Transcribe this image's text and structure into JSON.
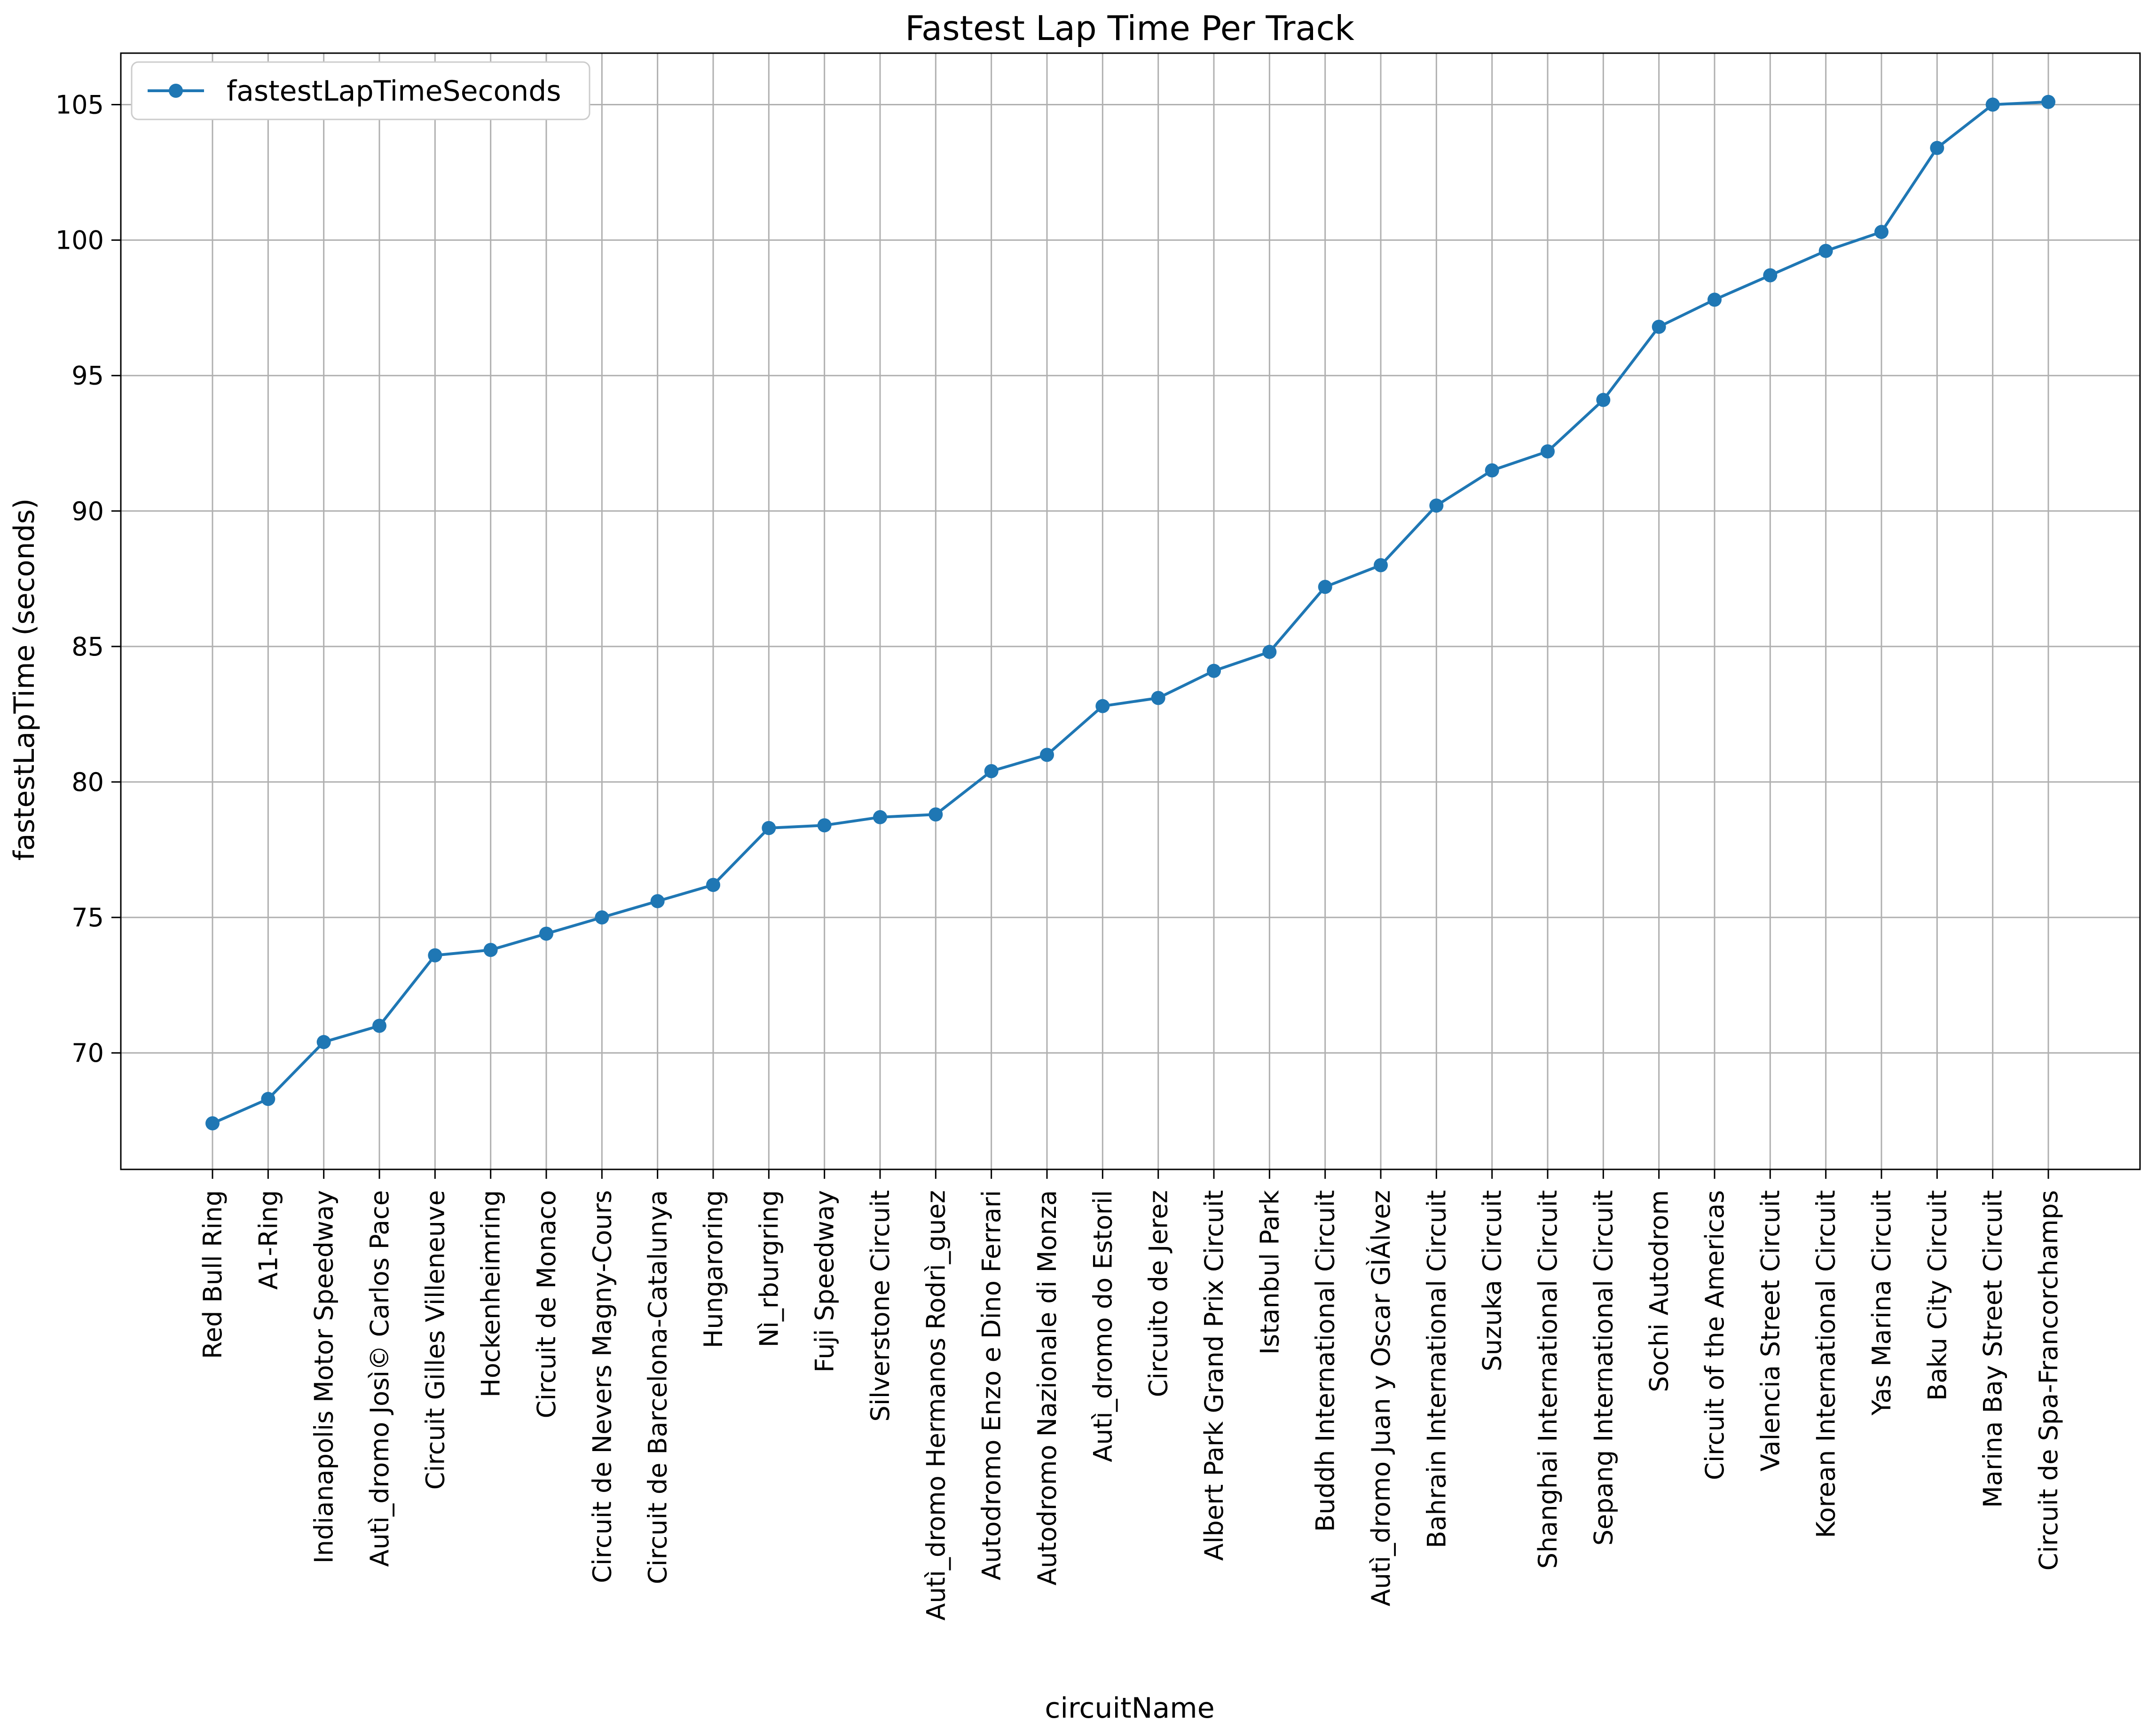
{
  "chart_data": {
    "type": "line",
    "title": "Fastest Lap Time Per Track",
    "xlabel": "circuitName",
    "ylabel": "fastestLapTime (seconds)",
    "ylim": [
      65.7,
      106.9
    ],
    "yticks": [
      70,
      75,
      80,
      85,
      90,
      95,
      100,
      105
    ],
    "grid": true,
    "legend_position": "upper-left",
    "categories": [
      "Red Bull Ring",
      "A1-Ring",
      "Indianapolis Motor Speedway",
      "Autì_dromo Josì© Carlos Pace",
      "Circuit Gilles Villeneuve",
      "Hockenheimring",
      "Circuit de Monaco",
      "Circuit de Nevers Magny-Cours",
      "Circuit de Barcelona-Catalunya",
      "Hungaroring",
      "Nì_rburgring",
      "Fuji Speedway",
      "Silverstone Circuit",
      "Autì_dromo Hermanos Rodrì_guez",
      "Autodromo Enzo e Dino Ferrari",
      "Autodromo Nazionale di Monza",
      "Autì_dromo do Estoril",
      "Circuito de Jerez",
      "Albert Park Grand Prix Circuit",
      "Istanbul Park",
      "Buddh International Circuit",
      "Autì_dromo Juan y Oscar GÌÁlvez",
      "Bahrain International Circuit",
      "Suzuka Circuit",
      "Shanghai International Circuit",
      "Sepang International Circuit",
      "Sochi Autodrom",
      "Circuit of the Americas",
      "Valencia Street Circuit",
      "Korean International Circuit",
      "Yas Marina Circuit",
      "Baku City Circuit",
      "Marina Bay Street Circuit",
      "Circuit de Spa-Francorchamps"
    ],
    "series": [
      {
        "name": "fastestLapTimeSeconds",
        "color": "#1f77b4",
        "values": [
          67.4,
          68.3,
          70.4,
          71.0,
          73.6,
          73.8,
          74.4,
          75.0,
          75.6,
          76.2,
          78.3,
          78.4,
          78.7,
          78.8,
          80.4,
          81.0,
          82.8,
          83.1,
          84.1,
          84.8,
          87.2,
          88.0,
          90.2,
          91.5,
          92.2,
          94.1,
          96.8,
          97.8,
          98.7,
          99.6,
          100.3,
          103.4,
          105.0,
          105.1
        ]
      }
    ]
  }
}
